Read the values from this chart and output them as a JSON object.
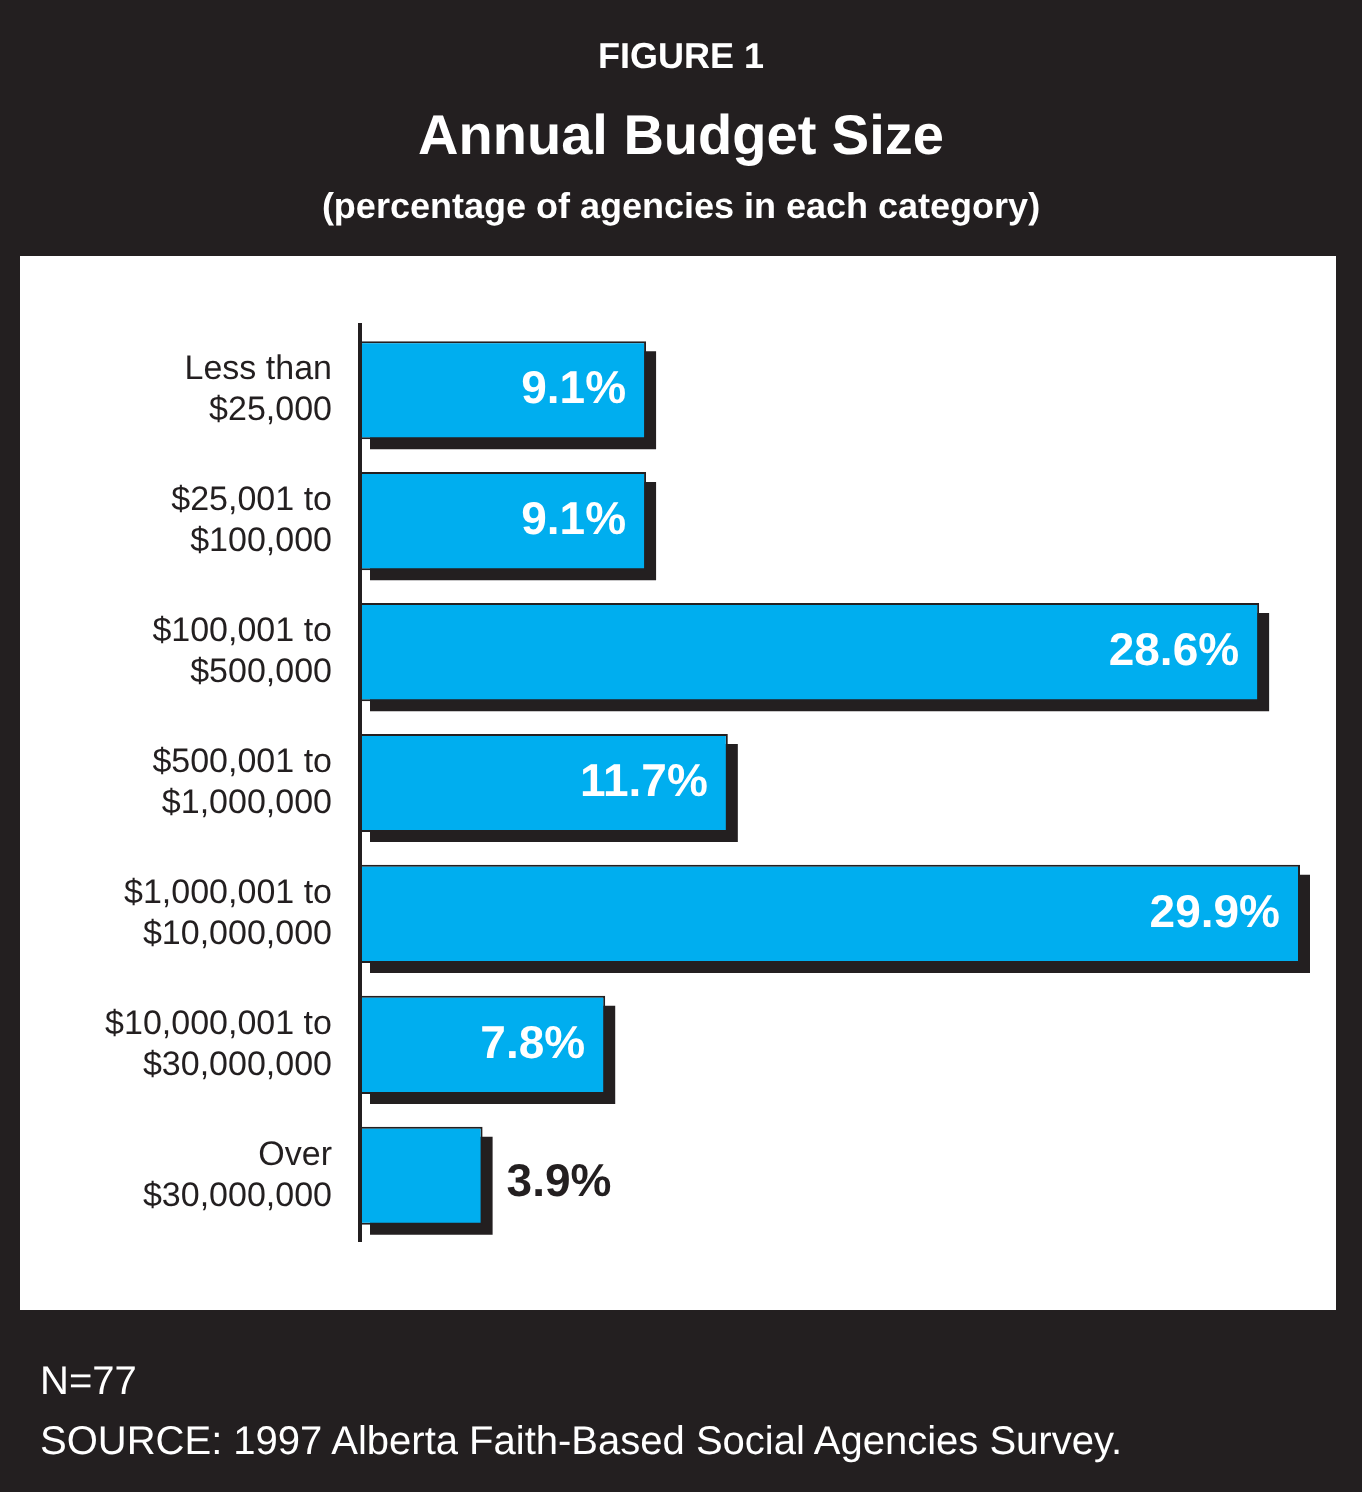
{
  "chart_data": {
    "type": "bar",
    "orientation": "horizontal",
    "title": "Annual Budget Size",
    "subtitle": "(percentage of agencies in each category)",
    "categories": [
      "Less than\n$25,000",
      "$25,001 to\n$100,000",
      "$100,001 to\n$500,000",
      "$500,001 to\n$1,000,000",
      "$1,000,001 to\n$10,000,000",
      "$10,000,001 to\n$30,000,000",
      "Over\n$30,000,000"
    ],
    "values": [
      9.1,
      9.1,
      28.6,
      11.7,
      29.9,
      7.8,
      3.9
    ],
    "value_labels": [
      "9.1%",
      "9.1%",
      "28.6%",
      "11.7%",
      "29.9%",
      "7.8%",
      "3.9%"
    ],
    "color": "#00aeef",
    "grid": false,
    "legend": false,
    "annotations": [
      "FIGURE 1",
      "N=77",
      "SOURCE:  1997 Alberta Faith-Based Social Agencies Survey."
    ]
  }
}
